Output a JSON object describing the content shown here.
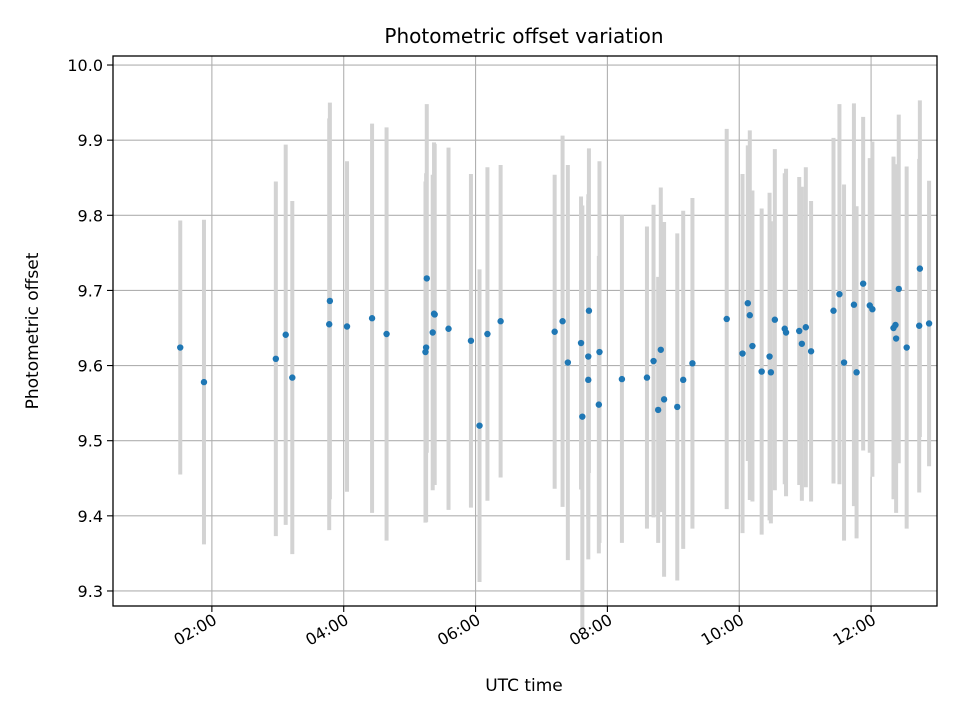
{
  "chart_data": {
    "type": "scatter",
    "title": "Photometric offset variation",
    "xlabel": "UTC time",
    "ylabel": "Photometric offset",
    "x_unit": "hours UTC",
    "xlim": [
      0.5,
      13.0
    ],
    "ylim": [
      9.28,
      10.012
    ],
    "x_ticks": [
      2,
      4,
      6,
      8,
      10,
      12
    ],
    "x_tick_labels": [
      "02:00",
      "04:00",
      "06:00",
      "08:00",
      "10:00",
      "12:00"
    ],
    "y_ticks": [
      9.3,
      9.4,
      9.5,
      9.6,
      9.7,
      9.8,
      9.9,
      10.0
    ],
    "y_tick_labels": [
      "9.3",
      "9.4",
      "9.5",
      "9.6",
      "9.7",
      "9.8",
      "9.9",
      "10.0"
    ],
    "grid": true,
    "colors": {
      "points": "#1f77b4",
      "errorbars": "#d3d3d3",
      "grid": "#b0b0b0"
    },
    "series": [
      {
        "x": [
          1.52,
          1.88,
          2.97,
          3.12,
          3.22,
          3.78,
          3.79,
          4.05,
          4.43,
          4.65,
          5.24,
          5.25,
          5.26,
          5.35,
          5.37,
          5.38,
          5.59,
          5.93,
          6.06,
          6.18,
          6.38,
          7.2,
          7.32,
          7.4,
          7.6,
          7.62,
          7.71,
          7.71,
          7.72,
          7.87,
          7.88,
          8.22,
          8.6,
          8.7,
          8.77,
          8.81,
          8.86,
          9.06,
          9.15,
          9.29,
          9.81,
          10.05,
          10.13,
          10.16,
          10.2,
          10.34,
          10.46,
          10.48,
          10.54,
          10.69,
          10.71,
          10.91,
          10.95,
          11.01,
          11.09,
          11.43,
          11.52,
          11.59,
          11.74,
          11.78,
          11.88,
          11.98,
          12.02,
          12.34,
          12.37,
          12.38,
          12.42,
          12.54,
          12.73,
          12.74,
          12.88
        ],
        "y": [
          9.624,
          9.578,
          9.609,
          9.641,
          9.584,
          9.655,
          9.686,
          9.652,
          9.663,
          9.642,
          9.618,
          9.624,
          9.716,
          9.644,
          9.669,
          9.668,
          9.649,
          9.633,
          9.52,
          9.642,
          9.659,
          9.645,
          9.659,
          9.604,
          9.63,
          9.532,
          9.612,
          9.581,
          9.673,
          9.548,
          9.618,
          9.582,
          9.584,
          9.606,
          9.541,
          9.621,
          9.555,
          9.545,
          9.581,
          9.603,
          9.662,
          9.616,
          9.683,
          9.667,
          9.626,
          9.592,
          9.612,
          9.591,
          9.661,
          9.649,
          9.644,
          9.646,
          9.629,
          9.651,
          9.619,
          9.673,
          9.695,
          9.604,
          9.681,
          9.591,
          9.709,
          9.68,
          9.675,
          9.65,
          9.654,
          9.636,
          9.702,
          9.624,
          9.653,
          9.729,
          9.656
        ],
        "yerr": [
          0.169,
          0.216,
          0.236,
          0.253,
          0.235,
          0.274,
          0.264,
          0.22,
          0.259,
          0.275,
          0.227,
          0.232,
          0.232,
          0.21,
          0.228,
          0.227,
          0.241,
          0.222,
          0.208,
          0.222,
          0.208,
          0.209,
          0.247,
          0.263,
          0.195,
          0.281,
          0.216,
          0.239,
          0.216,
          0.198,
          0.254,
          0.218,
          0.201,
          0.208,
          0.177,
          0.216,
          0.236,
          0.231,
          0.225,
          0.22,
          0.253,
          0.239,
          0.21,
          0.246,
          0.207,
          0.217,
          0.218,
          0.201,
          0.227,
          0.207,
          0.218,
          0.205,
          0.209,
          0.213,
          0.2,
          0.23,
          0.253,
          0.237,
          0.268,
          0.221,
          0.222,
          0.196,
          0.223,
          0.228,
          0.211,
          0.232,
          0.232,
          0.241,
          0.222,
          0.224,
          0.19
        ]
      }
    ]
  }
}
